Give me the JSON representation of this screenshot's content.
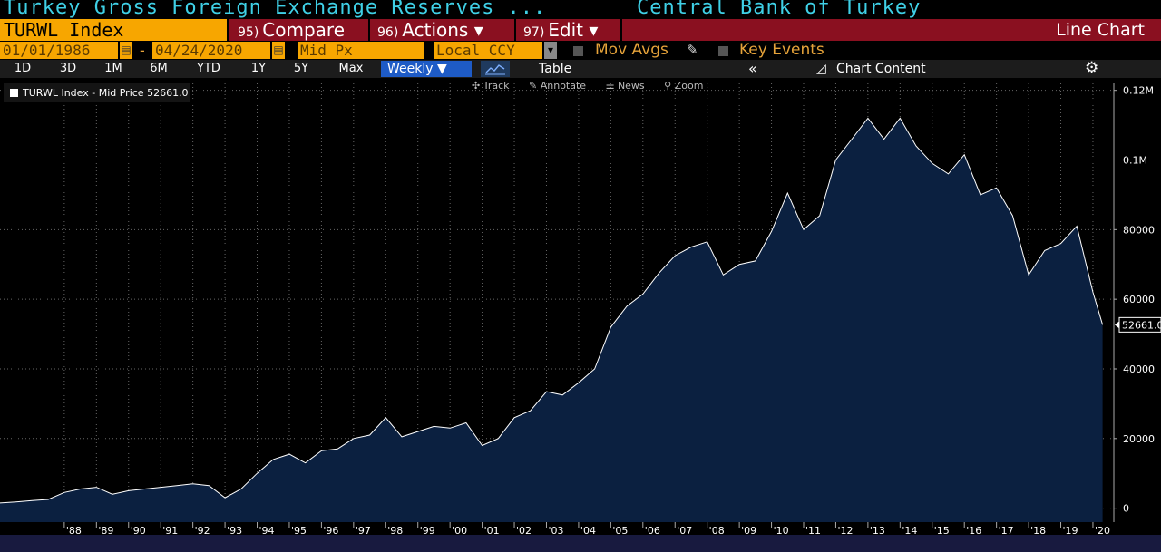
{
  "title": {
    "left": "Turkey Gross Foreign Exchange Reserves ...",
    "right": "Central Bank of Turkey"
  },
  "toolbar": {
    "ticker": "TURWL Index",
    "compare_num": "95)",
    "compare_label": "Compare",
    "actions_num": "96)",
    "actions_label": "Actions ▾",
    "edit_num": "97)",
    "edit_label": "Edit ▾",
    "chart_type": "Line Chart"
  },
  "params": {
    "start_date": "01/01/1986",
    "dash": "-",
    "end_date": "04/24/2020",
    "price_field": "Mid Px",
    "currency": "Local CCY",
    "mov_avgs": "Mov Avgs",
    "key_events": "Key Events"
  },
  "ranges": {
    "items": [
      "1D",
      "3D",
      "1M",
      "6M",
      "YTD",
      "1Y",
      "5Y",
      "Max"
    ],
    "frequency": "Weekly ▼",
    "table": "Table",
    "chart_content": "Chart Content"
  },
  "tools": {
    "track": "Track",
    "annotate": "Annotate",
    "news": "News",
    "zoom": "Zoom"
  },
  "legend": {
    "label": "TURWL Index - Mid Price 52661.0"
  },
  "colors": {
    "accent_orange": "#f7a600",
    "title_cyan": "#3fd0e6",
    "menu_red": "#8a1020",
    "area_fill": "#0b2040",
    "line": "#ffffff"
  },
  "chart_data": {
    "type": "area",
    "series": [
      {
        "name": "TURWL Index - Mid Price",
        "x": [
          1986.0,
          1986.5,
          1987.0,
          1987.5,
          1988.0,
          1988.5,
          1989.0,
          1989.5,
          1990.0,
          1990.5,
          1991.0,
          1991.5,
          1992.0,
          1992.5,
          1993.0,
          1993.5,
          1994.0,
          1994.5,
          1995.0,
          1995.5,
          1996.0,
          1996.5,
          1997.0,
          1997.5,
          1998.0,
          1998.5,
          1999.0,
          1999.5,
          2000.0,
          2000.5,
          2001.0,
          2001.5,
          2002.0,
          2002.5,
          2003.0,
          2003.5,
          2004.0,
          2004.5,
          2005.0,
          2005.5,
          2006.0,
          2006.5,
          2007.0,
          2007.5,
          2008.0,
          2008.5,
          2009.0,
          2009.5,
          2010.0,
          2010.5,
          2011.0,
          2011.5,
          2012.0,
          2012.5,
          2013.0,
          2013.5,
          2014.0,
          2014.5,
          2015.0,
          2015.5,
          2016.0,
          2016.5,
          2017.0,
          2017.5,
          2018.0,
          2018.5,
          2019.0,
          2019.5,
          2020.0,
          2020.3
        ],
        "values": [
          1500,
          1800,
          2200,
          2500,
          4500,
          5500,
          6000,
          4000,
          5000,
          5500,
          6000,
          6500,
          7000,
          6500,
          3000,
          5500,
          10000,
          14000,
          15500,
          13000,
          16500,
          17000,
          20000,
          21000,
          26000,
          20500,
          22000,
          23500,
          23000,
          24500,
          18000,
          20000,
          26000,
          28000,
          33500,
          32500,
          36000,
          40000,
          52000,
          58000,
          61500,
          67500,
          72500,
          75000,
          76500,
          67000,
          70000,
          71000,
          79500,
          90500,
          80000,
          84000,
          100000,
          106000,
          112000,
          106000,
          112000,
          104000,
          99000,
          96000,
          101500,
          90000,
          92000,
          84000,
          67000,
          74000,
          76000,
          81000,
          62000,
          52661
        ]
      }
    ],
    "xlabel": "",
    "ylabel": "",
    "last_value": "52661.0",
    "x_ticks": [
      "'88",
      "'89",
      "'90",
      "'91",
      "'92",
      "'93",
      "'94",
      "'95",
      "'96",
      "'97",
      "'98",
      "'99",
      "'00",
      "'01",
      "'02",
      "'03",
      "'04",
      "'05",
      "'06",
      "'07",
      "'08",
      "'09",
      "'10",
      "'11",
      "'12",
      "'13",
      "'14",
      "'15",
      "'16",
      "'17",
      "'18",
      "'19",
      "'20"
    ],
    "y_ticks": [
      {
        "value": 0,
        "label": "0"
      },
      {
        "value": 20000,
        "label": "20000"
      },
      {
        "value": 40000,
        "label": "40000"
      },
      {
        "value": 60000,
        "label": "60000"
      },
      {
        "value": 80000,
        "label": "80000"
      },
      {
        "value": 100000,
        "label": "0.1M"
      },
      {
        "value": 120000,
        "label": "0.12M"
      }
    ],
    "ylim": [
      -4000,
      122000
    ],
    "xlim": [
      1986.0,
      2020.65
    ],
    "grid": true,
    "legend_position": "top-left"
  }
}
